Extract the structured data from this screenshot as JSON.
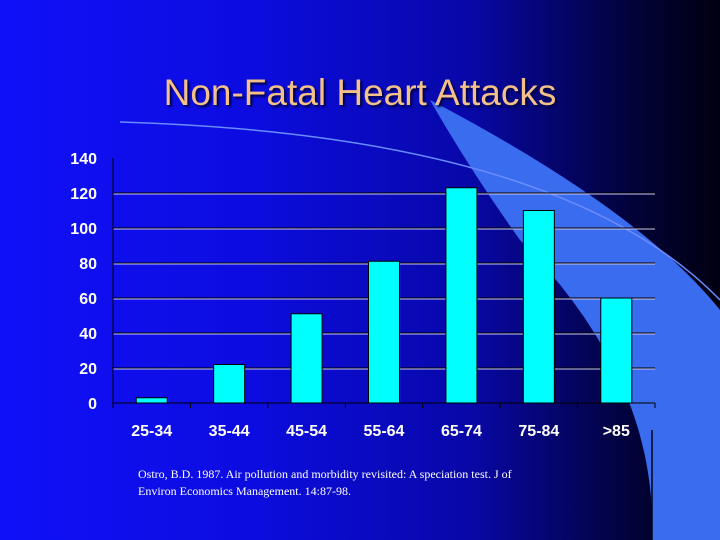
{
  "slide": {
    "title": "Non-Fatal Heart Attacks",
    "citation_line1": "Ostro, B.D.  1987.  Air pollution and morbidity revisited: A speciation test.  J of",
    "citation_line2": "Environ Economics Management. 14:87-98."
  },
  "colors": {
    "background": "#0c0ce0",
    "accent_sweep": "#3a6cf0",
    "bar": "#00ffff",
    "title": "#f3c08a"
  },
  "chart_data": {
    "type": "bar",
    "categories": [
      "25-34",
      "35-44",
      "45-54",
      "55-64",
      "65-74",
      "75-84",
      ">85"
    ],
    "values": [
      3,
      22,
      51,
      81,
      123,
      110,
      60
    ],
    "ylim": [
      0,
      140
    ],
    "yticks": [
      0,
      20,
      40,
      60,
      80,
      100,
      120,
      140
    ],
    "grid": true,
    "legend": "none"
  }
}
